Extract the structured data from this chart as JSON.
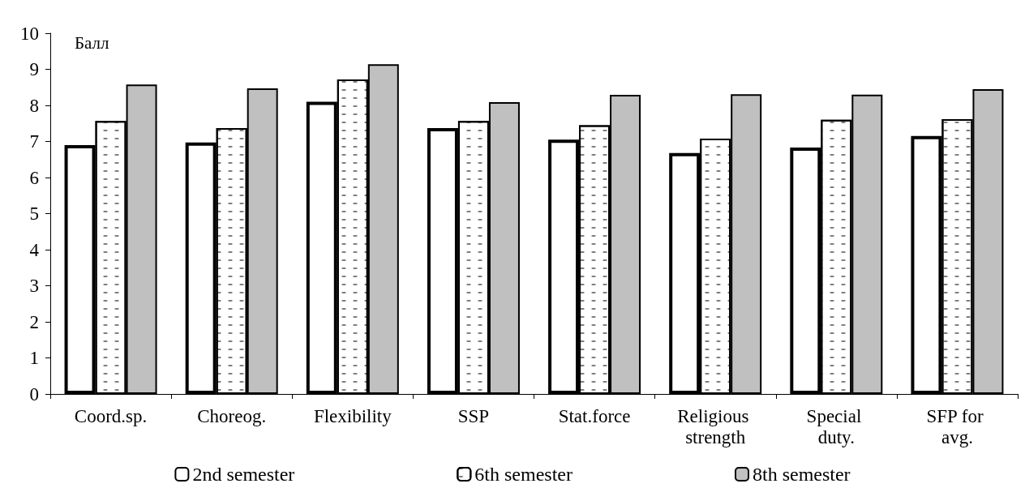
{
  "chart_data": {
    "type": "bar",
    "ylabel": "Балл",
    "categories": [
      "Coord.sp.",
      "Choreog.",
      "Flexibility",
      "SSP",
      "Stat.force",
      "Religious strength",
      "Special duty.",
      "SFP for avg."
    ],
    "series": [
      {
        "name": "2nd semester",
        "color": "#ffffff",
        "values": [
          6.9,
          6.97,
          8.1,
          7.37,
          7.05,
          6.68,
          6.83,
          7.15
        ]
      },
      {
        "name": "6th semester",
        "color": "#ffffff",
        "values": [
          7.57,
          7.37,
          8.72,
          7.57,
          7.45,
          7.08,
          7.6,
          7.62
        ]
      },
      {
        "name": "8th semester",
        "color": "#c0c0c0",
        "values": [
          8.58,
          8.47,
          9.14,
          8.09,
          8.29,
          8.31,
          8.3,
          8.45
        ]
      }
    ],
    "ylim": [
      0,
      10
    ],
    "yticks": [
      0,
      1,
      2,
      3,
      4,
      5,
      6,
      7,
      8,
      9,
      10
    ],
    "grid": false,
    "legend": "bottom"
  }
}
